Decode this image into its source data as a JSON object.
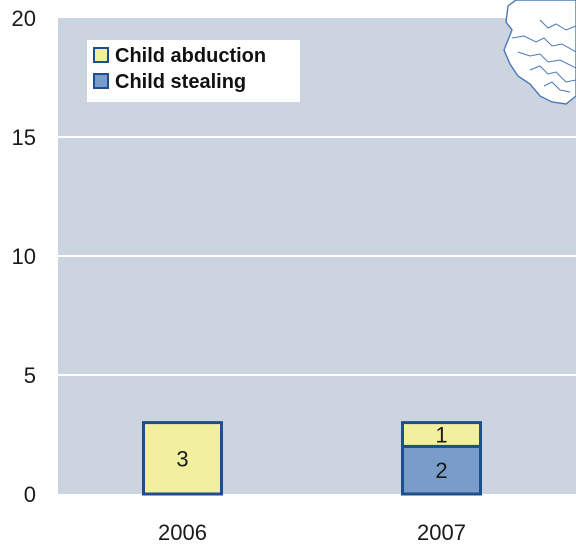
{
  "chart_data": {
    "type": "bar",
    "stacked": true,
    "categories": [
      "2006",
      "2007"
    ],
    "series": [
      {
        "name": "Child stealing",
        "values": [
          0,
          2
        ],
        "color": "#7a9cc8"
      },
      {
        "name": "Child abduction",
        "values": [
          3,
          1
        ],
        "color": "#f2f0a0"
      }
    ],
    "ylim": [
      0,
      20
    ],
    "yticks": [
      0,
      5,
      10,
      15,
      20
    ],
    "grid": true,
    "legend_position": "top-left",
    "legend_order": [
      "Child abduction",
      "Child stealing"
    ],
    "plot_background": "#ccd4e0",
    "bar_border_color": "#1f4e8c",
    "map_decoration": "west-africa-map-outline"
  }
}
